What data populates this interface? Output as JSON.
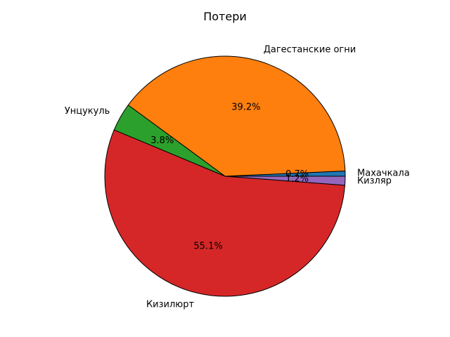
{
  "chart_data": {
    "type": "pie",
    "title": "Потери",
    "categories": [
      "Махачкала",
      "Дагестанские огни",
      "Унцукуль",
      "Кизилюрт",
      "Кизляр"
    ],
    "values": [
      0.7,
      39.2,
      3.8,
      55.1,
      1.2
    ],
    "percent_labels": [
      "0.7%",
      "39.2%",
      "3.8%",
      "55.1%",
      "1.2%"
    ],
    "colors": [
      "#1f77b4",
      "#ff7f0e",
      "#2ca02c",
      "#d62728",
      "#9467bd"
    ],
    "start_angle_deg": 0,
    "direction": "counterclockwise",
    "legend": "none"
  }
}
